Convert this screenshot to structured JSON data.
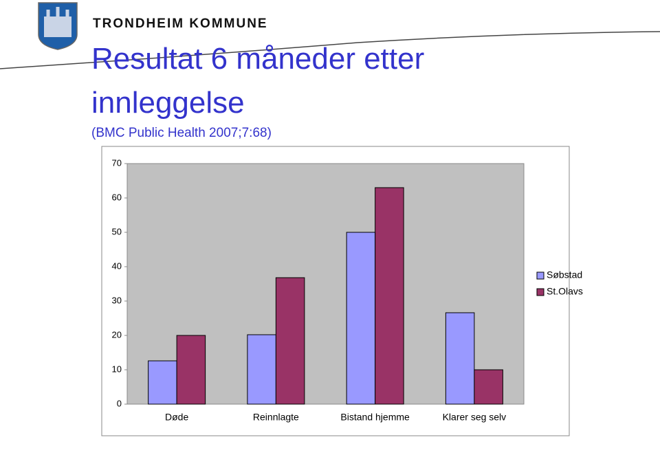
{
  "header": {
    "organization": "TRONDHEIM KOMMUNE"
  },
  "chart_data": {
    "type": "bar",
    "title": "Resultat 6 måneder etter innleggelse",
    "subtitle": "(BMC  Public Health 2007;7:68)",
    "categories": [
      "Døde",
      "Reinnlagte",
      "Bistand hjemme",
      "Klarer seg selv"
    ],
    "series": [
      {
        "name": "Søbstad",
        "color": "#9999ff",
        "values": [
          12.6,
          20.2,
          50,
          26.6
        ]
      },
      {
        "name": "St.Olavs",
        "color": "#993366",
        "values": [
          20,
          36.8,
          63,
          10
        ]
      }
    ],
    "ylim": [
      0,
      70
    ],
    "yticks": [
      0,
      10,
      20,
      30,
      40,
      50,
      60,
      70
    ],
    "plot_background": "#c0c0c0",
    "legend": "right"
  }
}
